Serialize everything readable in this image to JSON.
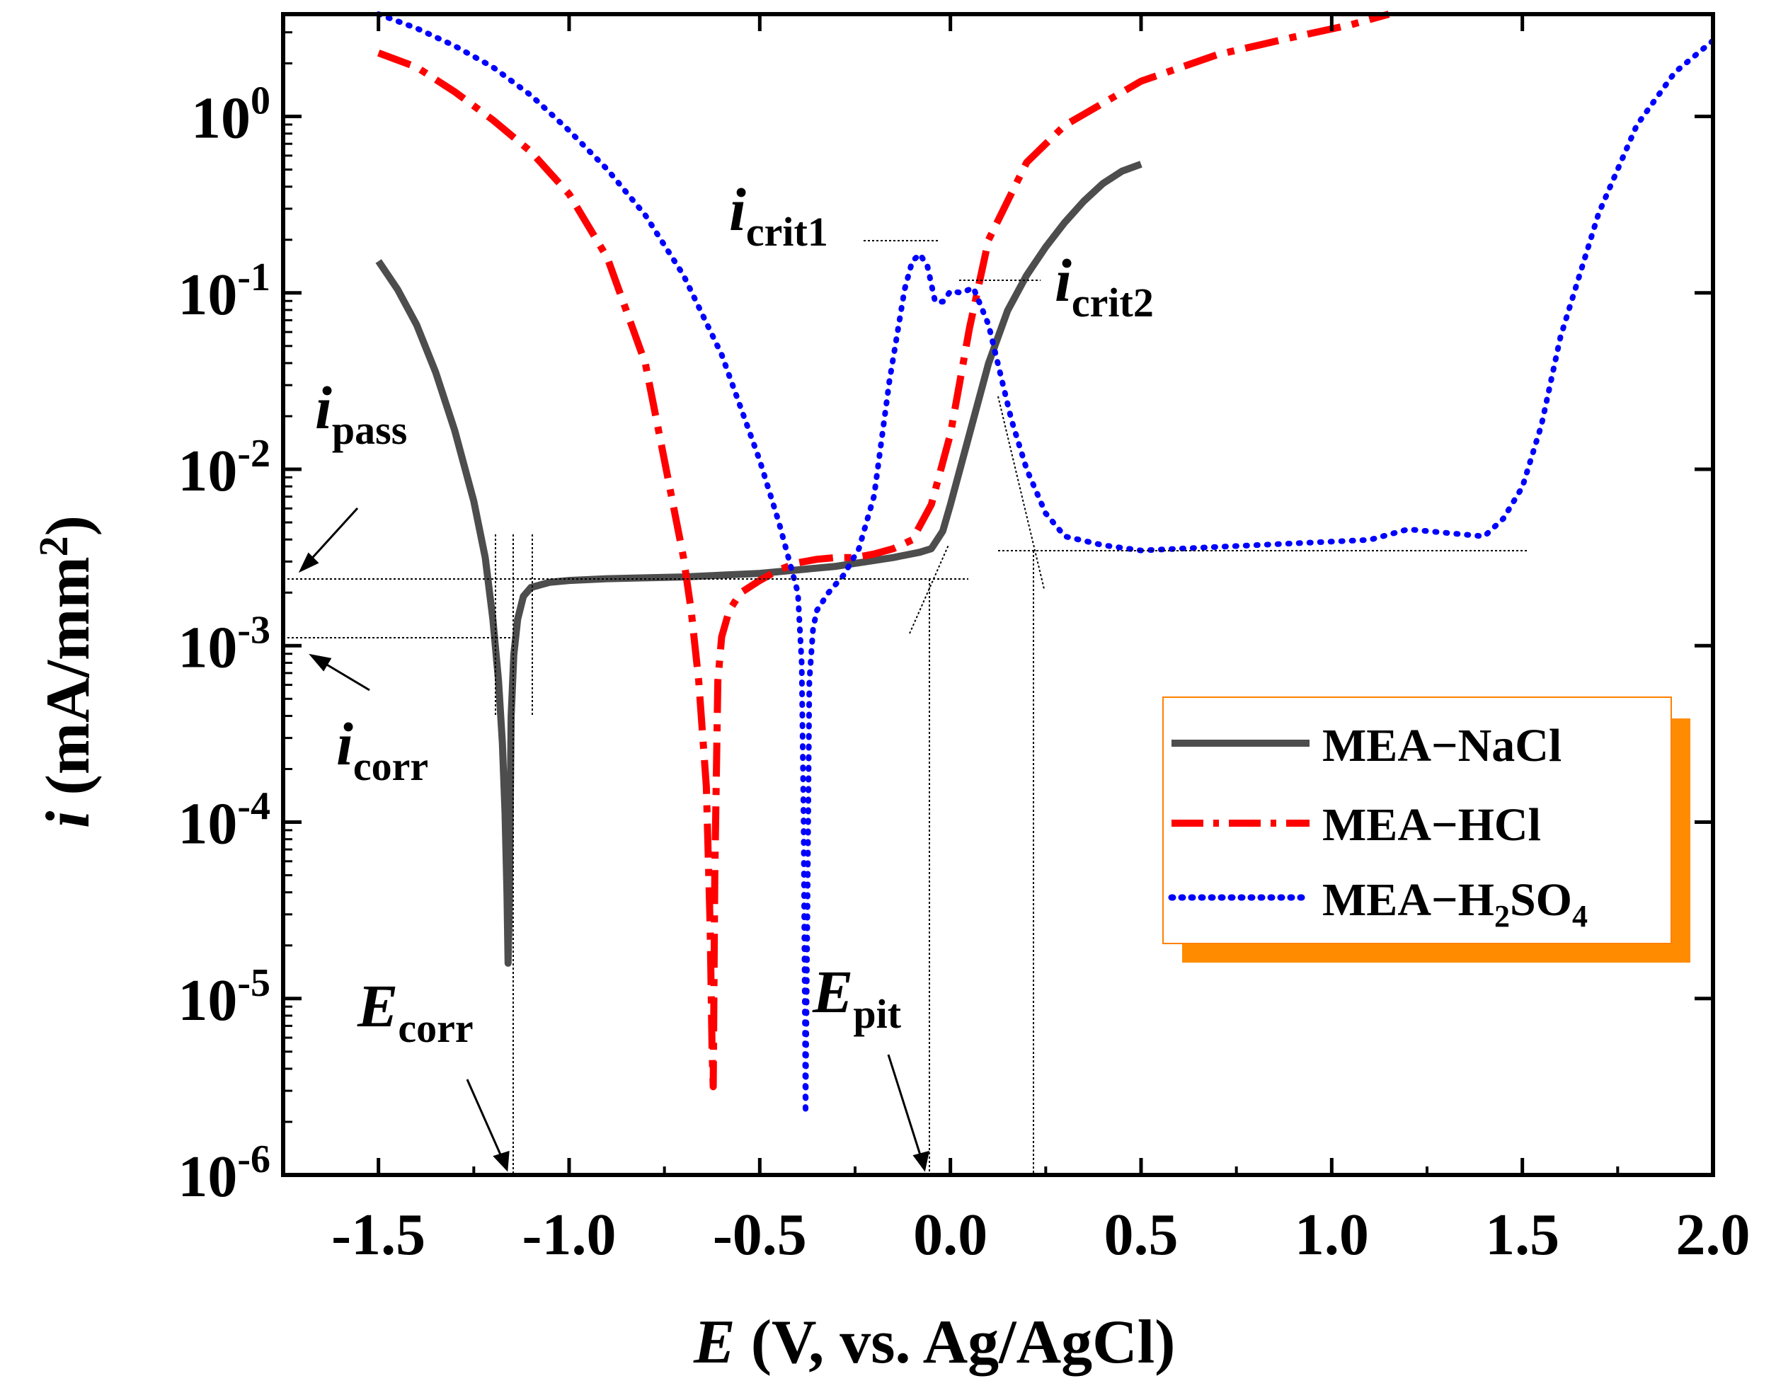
{
  "chart_data": {
    "type": "line",
    "title": "",
    "xlabel": {
      "italic": "E",
      "rest": " (V, vs. Ag/AgCl)"
    },
    "ylabel": {
      "italic": "i",
      "rest": " (mA/mm",
      "sup": "2",
      "close": ")"
    },
    "xlim": [
      -1.75,
      2.0
    ],
    "ylim_log10": [
      -6,
      0.58
    ],
    "x_ticks": [
      {
        "value": -1.5,
        "label": "-1.5"
      },
      {
        "value": -1.0,
        "label": "-1.0"
      },
      {
        "value": -0.5,
        "label": "-0.5"
      },
      {
        "value": 0.0,
        "label": "0.0"
      },
      {
        "value": 0.5,
        "label": "0.5"
      },
      {
        "value": 1.0,
        "label": "1.0"
      },
      {
        "value": 1.5,
        "label": "1.5"
      },
      {
        "value": 2.0,
        "label": "2.0"
      }
    ],
    "y_ticks": [
      {
        "exp": 0,
        "base": "10",
        "sup": "0"
      },
      {
        "exp": -1,
        "base": "10",
        "sup": "-1"
      },
      {
        "exp": -2,
        "base": "10",
        "sup": "-2"
      },
      {
        "exp": -3,
        "base": "10",
        "sup": "-3"
      },
      {
        "exp": -4,
        "base": "10",
        "sup": "-4"
      },
      {
        "exp": -5,
        "base": "10",
        "sup": "-5"
      },
      {
        "exp": -6,
        "base": "10",
        "sup": "-6"
      }
    ],
    "series": [
      {
        "name": "MEA−NaCl",
        "color": "#4d4d4d",
        "style": "solid",
        "x": [
          -1.5,
          -1.45,
          -1.4,
          -1.35,
          -1.3,
          -1.25,
          -1.22,
          -1.2,
          -1.185,
          -1.175,
          -1.168,
          -1.163,
          -1.16,
          -1.157,
          -1.152,
          -1.145,
          -1.135,
          -1.12,
          -1.1,
          -1.05,
          -1.0,
          -0.9,
          -0.7,
          -0.5,
          -0.3,
          -0.15,
          -0.08,
          -0.05,
          -0.02,
          0.0,
          0.05,
          0.1,
          0.15,
          0.2,
          0.25,
          0.3,
          0.35,
          0.4,
          0.45,
          0.5
        ],
        "log10y": [
          -0.82,
          -0.98,
          -1.18,
          -1.45,
          -1.78,
          -2.18,
          -2.5,
          -2.85,
          -3.2,
          -3.55,
          -3.95,
          -4.4,
          -4.8,
          -4.5,
          -3.4,
          -3.05,
          -2.85,
          -2.72,
          -2.67,
          -2.64,
          -2.63,
          -2.62,
          -2.61,
          -2.59,
          -2.55,
          -2.5,
          -2.47,
          -2.45,
          -2.35,
          -2.2,
          -1.8,
          -1.4,
          -1.1,
          -0.9,
          -0.74,
          -0.6,
          -0.48,
          -0.38,
          -0.31,
          -0.27
        ]
      },
      {
        "name": "MEA−HCl",
        "color": "#ff0000",
        "style": "dashdot",
        "x": [
          -1.5,
          -1.4,
          -1.3,
          -1.2,
          -1.1,
          -1.0,
          -0.9,
          -0.8,
          -0.75,
          -0.7,
          -0.68,
          -0.66,
          -0.64,
          -0.63,
          -0.625,
          -0.622,
          -0.618,
          -0.61,
          -0.6,
          -0.58,
          -0.55,
          -0.5,
          -0.45,
          -0.4,
          -0.35,
          -0.3,
          -0.25,
          -0.2,
          -0.15,
          -0.1,
          -0.05,
          0.0,
          0.05,
          0.1,
          0.2,
          0.3,
          0.5,
          0.7,
          0.9,
          1.05,
          1.15
        ],
        "log10y": [
          0.36,
          0.28,
          0.14,
          -0.02,
          -0.2,
          -0.44,
          -0.8,
          -1.4,
          -1.95,
          -2.5,
          -2.8,
          -3.2,
          -3.8,
          -4.6,
          -5.3,
          -5.5,
          -4.3,
          -3.2,
          -2.95,
          -2.8,
          -2.7,
          -2.63,
          -2.57,
          -2.53,
          -2.51,
          -2.5,
          -2.5,
          -2.48,
          -2.45,
          -2.4,
          -2.2,
          -1.8,
          -1.2,
          -0.7,
          -0.26,
          -0.05,
          0.2,
          0.35,
          0.45,
          0.52,
          0.58
        ]
      },
      {
        "name": "MEA−H2SO4",
        "color": "#0000ff",
        "style": "dotted",
        "x": [
          -1.5,
          -1.4,
          -1.3,
          -1.2,
          -1.1,
          -1.0,
          -0.9,
          -0.8,
          -0.7,
          -0.6,
          -0.5,
          -0.45,
          -0.4,
          -0.39,
          -0.385,
          -0.38,
          -0.375,
          -0.37,
          -0.36,
          -0.35,
          -0.32,
          -0.28,
          -0.24,
          -0.2,
          -0.16,
          -0.12,
          -0.1,
          -0.08,
          -0.06,
          -0.04,
          -0.02,
          0.0,
          0.03,
          0.06,
          0.1,
          0.13,
          0.16,
          0.2,
          0.25,
          0.3,
          0.4,
          0.5,
          0.6,
          0.8,
          1.0,
          1.1,
          1.2,
          1.3,
          1.4,
          1.45,
          1.5,
          1.55,
          1.6,
          1.7,
          1.8,
          1.9,
          2.0
        ],
        "log10y": [
          0.58,
          0.5,
          0.4,
          0.28,
          0.12,
          -0.08,
          -0.3,
          -0.56,
          -0.9,
          -1.35,
          -1.95,
          -2.3,
          -2.7,
          -3.1,
          -4.0,
          -5.65,
          -4.5,
          -3.2,
          -2.9,
          -2.8,
          -2.7,
          -2.6,
          -2.45,
          -2.15,
          -1.5,
          -0.98,
          -0.82,
          -0.78,
          -0.85,
          -1.05,
          -1.05,
          -0.99,
          -1.0,
          -0.97,
          -1.18,
          -1.45,
          -1.72,
          -2.0,
          -2.25,
          -2.38,
          -2.43,
          -2.46,
          -2.45,
          -2.43,
          -2.41,
          -2.4,
          -2.34,
          -2.36,
          -2.38,
          -2.28,
          -2.1,
          -1.75,
          -1.25,
          -0.55,
          -0.05,
          0.25,
          0.43
        ]
      }
    ],
    "annotations": {
      "i_pass": {
        "italic": "i",
        "sub": "pass"
      },
      "i_corr": {
        "italic": "i",
        "sub": "corr"
      },
      "E_corr": {
        "italic": "E",
        "sub": "corr"
      },
      "E_pit": {
        "italic": "E",
        "sub": "pit"
      },
      "i_crit1": {
        "italic": "i",
        "sub": "crit1"
      },
      "i_crit2": {
        "italic": "i",
        "sub": "crit2"
      }
    },
    "legend": {
      "position": "right-middle",
      "items": [
        {
          "text": "MEA−NaCl",
          "sub": "",
          "tail": ""
        },
        {
          "text": "MEA−HCl",
          "sub": "",
          "tail": ""
        },
        {
          "text": "MEA−H",
          "sub": "2",
          "mid": "SO",
          "sub2": "4"
        }
      ],
      "border_color": "#ff8000",
      "shadow_color": "#ff8c00"
    }
  }
}
